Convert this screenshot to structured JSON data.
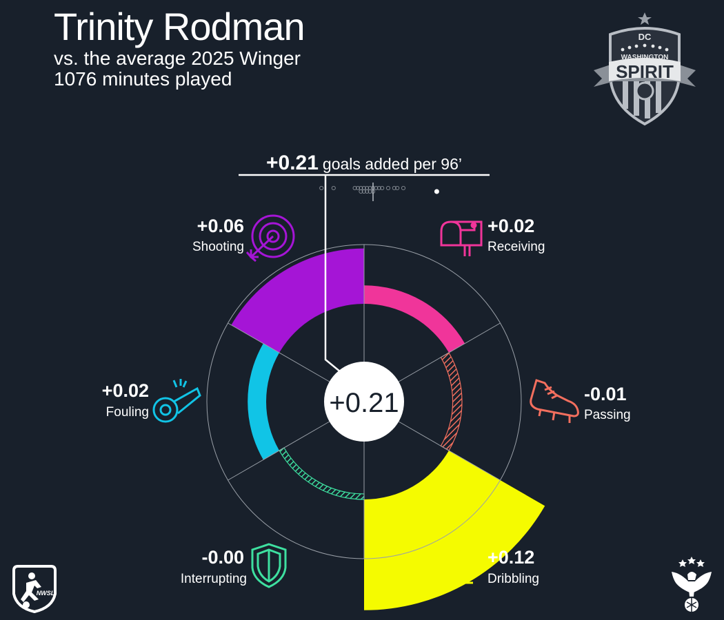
{
  "header": {
    "player_name": "Trinity Rodman",
    "comparison": "vs. the average 2025 Winger",
    "minutes": "1076 minutes played"
  },
  "logos": {
    "club_name_top": "WASHINGTON",
    "club_name_main": "SPIRIT",
    "league_mark": "NWSL"
  },
  "colors": {
    "background": "#18202b",
    "Shooting": "#a515d6",
    "Receiving": "#f0359a",
    "Passing": "#f36f5e",
    "Dribbling": "#f5fb00",
    "Interrupting": "#3ee0a0",
    "Fouling": "#11c4e6",
    "ring": "#9aa0a8"
  },
  "chart_data": {
    "type": "polar-bar",
    "title": "+0.21 goals added per 96’",
    "total": {
      "value": "+0.21",
      "numeric": 0.21,
      "label": "goals added per 96’"
    },
    "categories": [
      "Receiving",
      "Passing",
      "Dribbling",
      "Interrupting",
      "Fouling",
      "Shooting"
    ],
    "values": [
      0.02,
      -0.01,
      0.12,
      -0.0,
      0.02,
      0.06
    ],
    "value_labels": [
      "+0.02",
      "-0.01",
      "+0.12",
      "-0.00",
      "+0.02",
      "+0.06"
    ],
    "radial_range": [
      -0.05,
      0.15
    ],
    "comparison_distribution": [
      -0.17,
      -0.13,
      -0.06,
      -0.05,
      -0.04,
      -0.04,
      -0.03,
      -0.03,
      -0.02,
      -0.02,
      -0.01,
      -0.01,
      0.0,
      0.0,
      0.01,
      0.02,
      0.03,
      0.05,
      0.07,
      0.08,
      0.1
    ],
    "distribution_average": 0.0,
    "player_marker": 0.21
  }
}
